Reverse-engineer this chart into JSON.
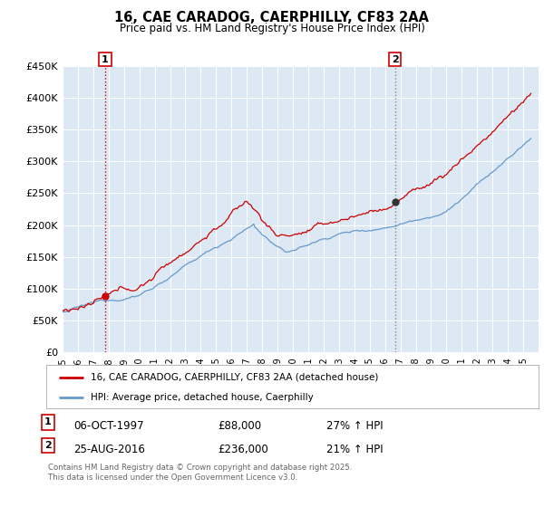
{
  "title": "16, CAE CARADOG, CAERPHILLY, CF83 2AA",
  "subtitle": "Price paid vs. HM Land Registry's House Price Index (HPI)",
  "legend_label_red": "16, CAE CARADOG, CAERPHILLY, CF83 2AA (detached house)",
  "legend_label_blue": "HPI: Average price, detached house, Caerphilly",
  "annotation1_date": "06-OCT-1997",
  "annotation1_price": "£88,000",
  "annotation1_hpi": "27% ↑ HPI",
  "annotation1_year": 1997.77,
  "annotation1_value": 88000,
  "annotation2_date": "25-AUG-2016",
  "annotation2_price": "£236,000",
  "annotation2_hpi": "21% ↑ HPI",
  "annotation2_year": 2016.65,
  "annotation2_value": 236000,
  "ymin": 0,
  "ymax": 450000,
  "yticks": [
    0,
    50000,
    100000,
    150000,
    200000,
    250000,
    300000,
    350000,
    400000,
    450000
  ],
  "background_color": "#ffffff",
  "plot_bg_color": "#dce9f5",
  "grid_color": "#ffffff",
  "red_color": "#cc0000",
  "blue_color": "#6699cc",
  "ann1_vline_color": "#cc0000",
  "ann2_vline_color": "#888888",
  "footer": "Contains HM Land Registry data © Crown copyright and database right 2025.\nThis data is licensed under the Open Government Licence v3.0.",
  "xmin": 1995,
  "xmax": 2026
}
